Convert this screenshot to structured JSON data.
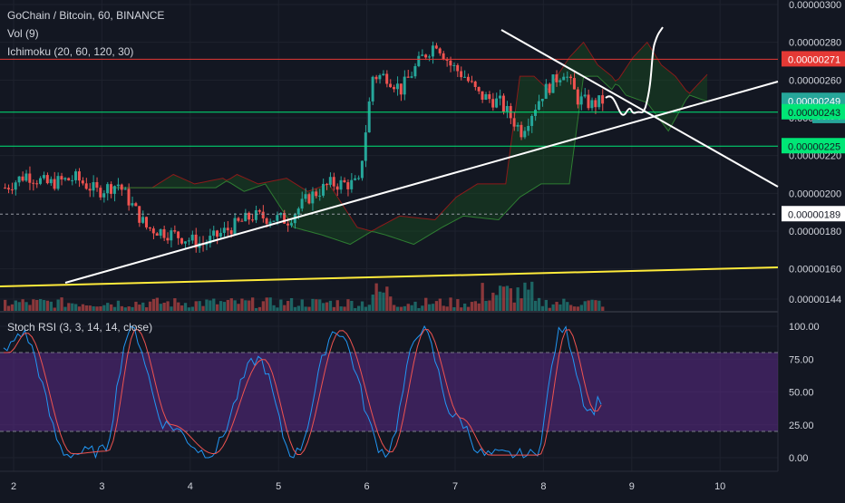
{
  "legend": {
    "symbol": "GoChain / Bitcoin, 60, BINANCE",
    "volume": "Vol (9)",
    "ichimoku": "Ichimoku (20, 60, 120, 30)",
    "stoch_rsi": "Stoch RSI (3, 3, 14, 14, close)"
  },
  "colors": {
    "background": "#131722",
    "grid": "#1e222d",
    "up": "#26a69a",
    "down": "#ef5350",
    "resistance_line": "#e53935",
    "support_line": "#00e676",
    "trend_line": "#ffffff",
    "long_trend": "#ffeb3b",
    "rsi_band": "#5b2a86",
    "stoch_k": "#2196f3",
    "stoch_d": "#ef5350"
  },
  "chart_data": [
    {
      "type": "candlestick",
      "title": "GoChain / Bitcoin, 60, BINANCE",
      "x_ticks": [
        "2",
        "3",
        "4",
        "5",
        "6",
        "7",
        "8",
        "9",
        "10"
      ],
      "y_ticks": [
        "0.00000300",
        "0.00000280",
        "0.00000260",
        "0.00000240",
        "0.00000220",
        "0.00000200",
        "0.00000180",
        "0.00000160",
        "0.00000144"
      ],
      "ylim": [
        1.4e-06,
        3.02e-06
      ],
      "price_labels": [
        {
          "text": "0.00000271",
          "value": 2.71e-06,
          "color": "#e53935"
        },
        {
          "text": "0.00000249",
          "value": 2.49e-06,
          "color": "#26a69a"
        },
        {
          "text": "00:54",
          "value": 2.41e-06,
          "color": "#26a69a"
        },
        {
          "text": "0.00000243",
          "value": 2.43e-06,
          "color": "#00e676"
        },
        {
          "text": "0.00000225",
          "value": 2.25e-06,
          "color": "#00e676"
        },
        {
          "text": "0.00000189",
          "value": 1.89e-06,
          "color": "#ffffff"
        }
      ],
      "horizontal_lines": [
        2.71e-06,
        2.43e-06,
        2.25e-06
      ],
      "grid": true
    },
    {
      "type": "line",
      "title": "Stoch RSI (3, 3, 14, 14, close)",
      "y_ticks": [
        "100.00",
        "75.00",
        "50.00",
        "25.00",
        "0.00"
      ],
      "ylim": [
        0,
        100
      ],
      "band": [
        20,
        80
      ],
      "grid": true
    }
  ]
}
